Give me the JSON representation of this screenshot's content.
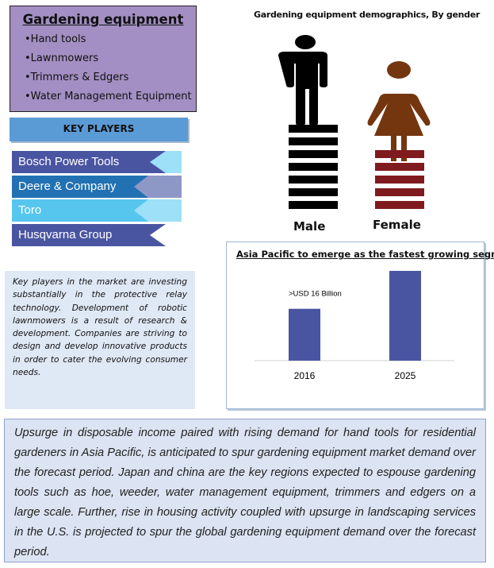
{
  "segments": {
    "title": "Gardening equipment",
    "items": [
      "Hand tools",
      "Lawnmowers",
      "Trimmers & Edgers",
      "Water Management Equipment"
    ]
  },
  "key_players": {
    "title": "KEY PLAYERS",
    "items": [
      {
        "label": "Bosch Power Tools",
        "color": "#4a55a2",
        "accent": "#9ee0f7"
      },
      {
        "label": "Deere & Company",
        "color": "#2271b3",
        "accent": "#8e98c7"
      },
      {
        "label": "Toro",
        "color": "#56c6ef",
        "accent": "#9ee0f7"
      },
      {
        "label": "Husqvarna  Group",
        "color": "#4a55a2",
        "accent": "#ffffff"
      }
    ]
  },
  "description": "Key players in the market are investing substantially in the protective relay technology. Development of robotic lawnmowers is a result of research & development. Companies are striving to design and develop innovative products in order to cater the evolving consumer needs.",
  "demographics": {
    "title": "Gardening equipment demographics, By gender",
    "male_label": "Male",
    "female_label": "Female",
    "male_color": "#000000",
    "female_color": "#74360f",
    "female_stack_color": "#7f1a1e",
    "male_levels": 7,
    "female_levels": 5
  },
  "chart_data": {
    "type": "bar",
    "title": "Asia Pacific to emerge as the fastest growing segment",
    "categories": [
      "2016",
      "2025"
    ],
    "values": [
      16,
      27.7
    ],
    "data_labels": [
      ">USD 16 Billion",
      ""
    ],
    "xlabel": "",
    "ylabel": "",
    "ylim": [
      0,
      30
    ],
    "grid": false,
    "color": "#4a55a2"
  },
  "summary": "Upsurge in disposable income paired with rising demand for hand tools for residential gardeners in Asia Pacific, is anticipated to spur gardening equipment market demand over the forecast period. Japan and china are the key regions expected to espouse gardening tools such as hoe, weeder, water management equipment, trimmers and edgers on a large scale. Further, rise in housing activity coupled with upsurge in landscaping services in the U.S. is projected to spur the global gardening equipment demand over the forecast period."
}
